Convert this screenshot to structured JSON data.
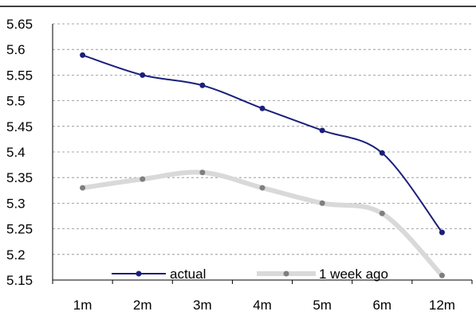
{
  "chart_data": {
    "type": "line",
    "categories": [
      "1m",
      "2m",
      "3m",
      "4m",
      "5m",
      "6m",
      "12m"
    ],
    "ylim": [
      5.15,
      5.65
    ],
    "yticks": [
      "5.65",
      "5.6",
      "5.55",
      "5.5",
      "5.45",
      "5.4",
      "5.35",
      "5.3",
      "5.25",
      "5.2",
      "5.15"
    ],
    "grid": true,
    "legend_position": "bottom",
    "series": [
      {
        "name": "actual",
        "values": [
          5.589,
          5.55,
          5.53,
          5.485,
          5.442,
          5.398,
          5.243
        ],
        "color": "#1b1f7a",
        "style": "dark-line"
      },
      {
        "name": "1 week ago",
        "values": [
          5.33,
          5.347,
          5.36,
          5.33,
          5.3,
          5.28,
          5.159
        ],
        "color": "#d9d9d9",
        "marker_color": "#7f7f7f",
        "style": "thick-light-line"
      }
    ]
  }
}
